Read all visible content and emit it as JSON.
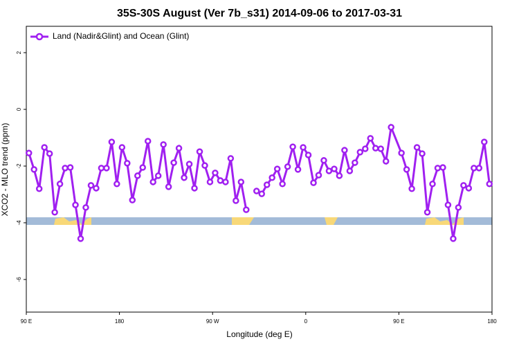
{
  "chart_data": {
    "type": "line",
    "title": "35S-30S August (Ver 7b_s31)   2014-09-06 to 2017-03-31",
    "xlabel": "Longitude (deg E)",
    "ylabel": "XCO2 - MLO trend (ppm)",
    "x": [
      92.5,
      97.5,
      102.5,
      107.5,
      112.5,
      117.5,
      122.5,
      127.5,
      132.5,
      137.5,
      142.5,
      147.5,
      152.5,
      157.5,
      162.5,
      167.5,
      172.5,
      177.5,
      182.5,
      187.5,
      192.5,
      197.5,
      202.5,
      207.5,
      212.5,
      217.5,
      222.5,
      227.5,
      232.5,
      237.5,
      242.5,
      247.5,
      252.5,
      257.5,
      262.5,
      267.5,
      272.5,
      277.5,
      282.5,
      287.5,
      292.5,
      297.5,
      302.5,
      307.5,
      312.5,
      317.5,
      322.5,
      327.5,
      332.5,
      337.5,
      342.5,
      347.5,
      352.5,
      357.5,
      362.5,
      367.5,
      372.5,
      377.5,
      382.5,
      387.5,
      392.5,
      397.5,
      402.5,
      407.5,
      412.5,
      417.5,
      422.5,
      427.5,
      432.5,
      437.5,
      442.5,
      452.5,
      457.5,
      462.5,
      467.5,
      472.5,
      477.5,
      482.5,
      487.5,
      492.5,
      497.5,
      502.5,
      507.5,
      512.5,
      517.5,
      522.5,
      527.5,
      532.5,
      537.5
    ],
    "series": [
      {
        "name": "Land (Nadir&Glint) and Ocean (Glint)",
        "color": "#a020f0",
        "values": [
          -1.54,
          -2.12,
          -2.8,
          -1.34,
          -1.56,
          -3.63,
          -2.63,
          -2.07,
          -2.05,
          -3.37,
          -4.56,
          -3.46,
          -2.68,
          -2.78,
          -2.07,
          -2.07,
          -1.15,
          -2.63,
          -1.34,
          -1.9,
          -3.2,
          -2.34,
          -2.05,
          -1.12,
          -2.56,
          -2.34,
          -1.24,
          -2.73,
          -1.88,
          -1.37,
          -2.41,
          -1.93,
          -2.78,
          -1.49,
          -1.98,
          -2.56,
          -2.24,
          -2.51,
          -2.56,
          -1.73,
          -3.22,
          -2.56,
          -3.54,
          null,
          -2.88,
          -2.98,
          -2.66,
          -2.41,
          -2.1,
          -2.63,
          -2.02,
          -1.32,
          -2.12,
          -1.34,
          -1.61,
          -2.59,
          -2.32,
          -1.8,
          -2.17,
          -2.1,
          -2.34,
          -1.44,
          -2.17,
          -1.88,
          -1.51,
          -1.39,
          -1.02,
          -1.37,
          -1.39,
          -1.83,
          -0.63,
          -1.54,
          -2.12,
          -2.8,
          -1.34,
          -1.56,
          -3.63,
          -2.63,
          -2.07,
          -2.05,
          -3.37,
          -4.56,
          -3.46,
          -2.68,
          -2.78,
          -2.07,
          -2.07,
          -1.15,
          -2.63
        ]
      }
    ],
    "xlim": [
      90,
      540
    ],
    "xticks": [
      {
        "value": 90,
        "label": "90 E"
      },
      {
        "value": 180,
        "label": "180"
      },
      {
        "value": 270,
        "label": "90 W"
      },
      {
        "value": 360,
        "label": "0"
      },
      {
        "value": 450,
        "label": "90 E"
      },
      {
        "value": 540,
        "label": "180"
      }
    ],
    "ylim": [
      -7.15,
      2.93
    ],
    "yticks": [
      2,
      0,
      -2,
      -4,
      -6
    ],
    "legend": "top-left"
  }
}
